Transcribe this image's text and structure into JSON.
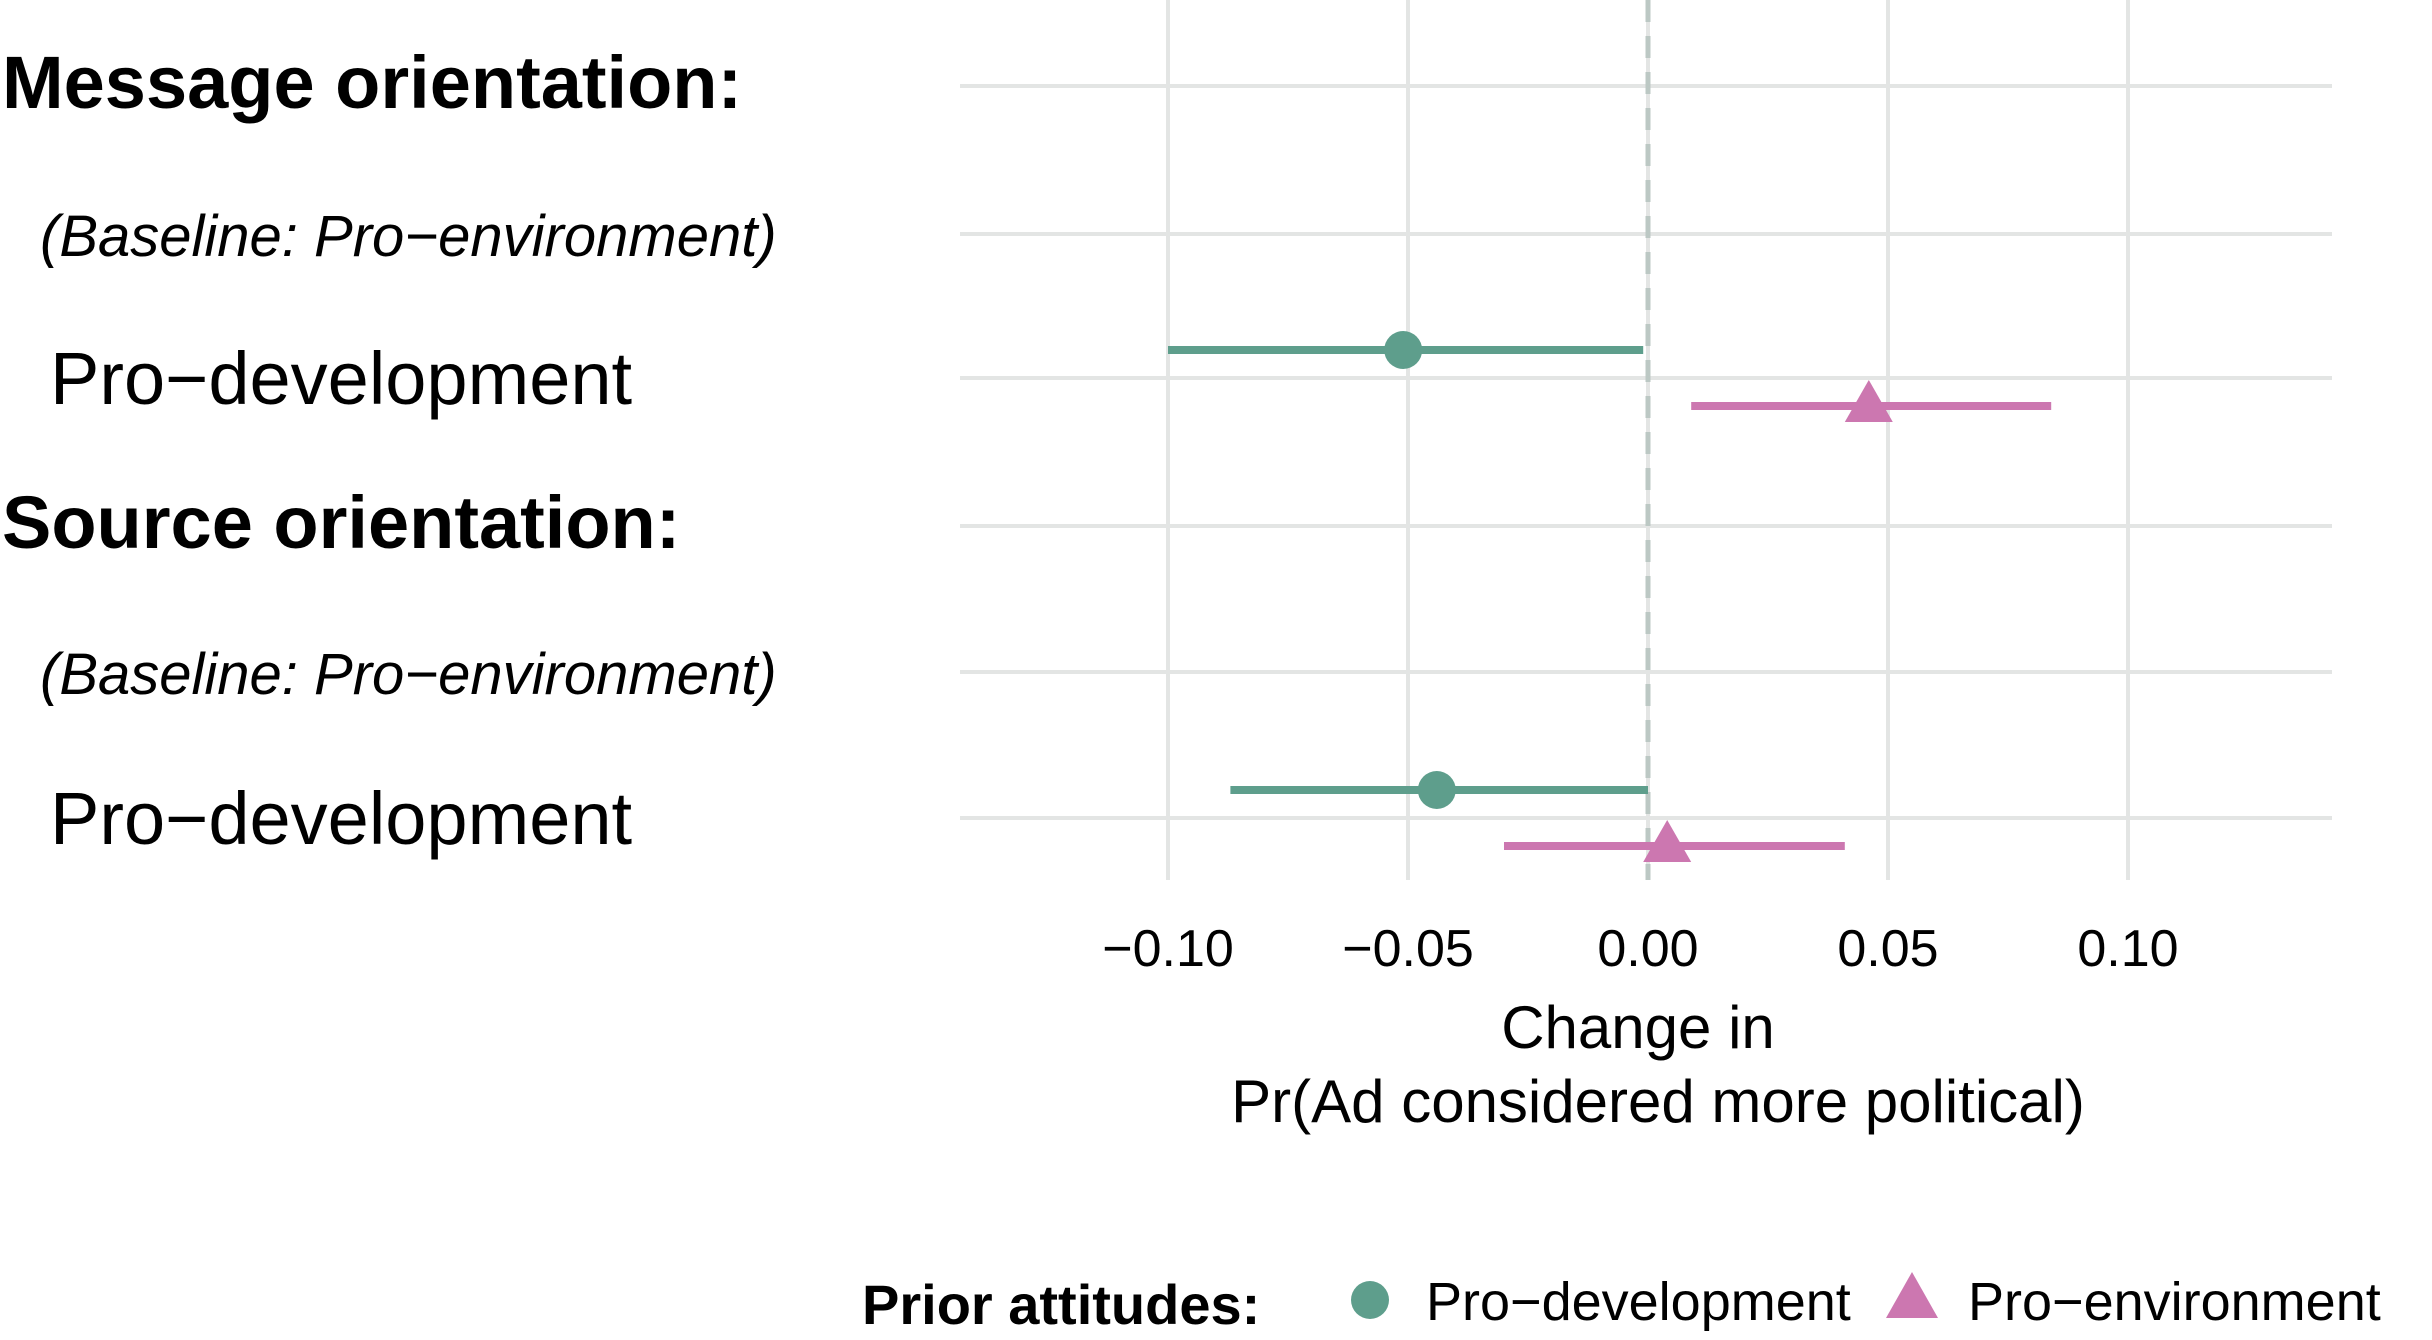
{
  "chart_data": {
    "type": "scatter",
    "subtype": "coefficient-plot",
    "rows": [
      {
        "label": "Message orientation:",
        "style": "heading"
      },
      {
        "label": "(Baseline: Pro−environment)",
        "style": "baseline"
      },
      {
        "label": "Pro−development",
        "style": "term"
      },
      {
        "label": "Source orientation:",
        "style": "heading"
      },
      {
        "label": "(Baseline: Pro−environment)",
        "style": "baseline"
      },
      {
        "label": "Pro−development",
        "style": "term"
      }
    ],
    "series": [
      {
        "name": "Pro−development",
        "color": "#5e9e8c",
        "marker": "circle",
        "points": [
          {
            "row": 2,
            "estimate": -0.051,
            "lower": -0.1,
            "upper": -0.001
          },
          {
            "row": 5,
            "estimate": -0.044,
            "lower": -0.087,
            "upper": 0.0
          }
        ]
      },
      {
        "name": "Pro−environment",
        "color": "#cc77b0",
        "marker": "triangle",
        "points": [
          {
            "row": 2,
            "estimate": 0.046,
            "lower": 0.009,
            "upper": 0.084
          },
          {
            "row": 5,
            "estimate": 0.004,
            "lower": -0.03,
            "upper": 0.041
          }
        ]
      }
    ],
    "xlim": [
      -0.142,
      0.143
    ],
    "xticks": [
      -0.1,
      -0.05,
      0.0,
      0.05,
      0.1
    ],
    "xtick_labels": [
      "−0.10",
      "−0.05",
      "0.00",
      "0.05",
      "0.10"
    ],
    "xlabel_line1": "Change in",
    "xlabel_line2": "Pr(Ad considered more political)",
    "reference_line": 0,
    "grid": true,
    "legend": {
      "title": "Prior attitudes:",
      "position": "bottom",
      "entries": [
        "Pro−development",
        "Pro−environment"
      ]
    }
  }
}
